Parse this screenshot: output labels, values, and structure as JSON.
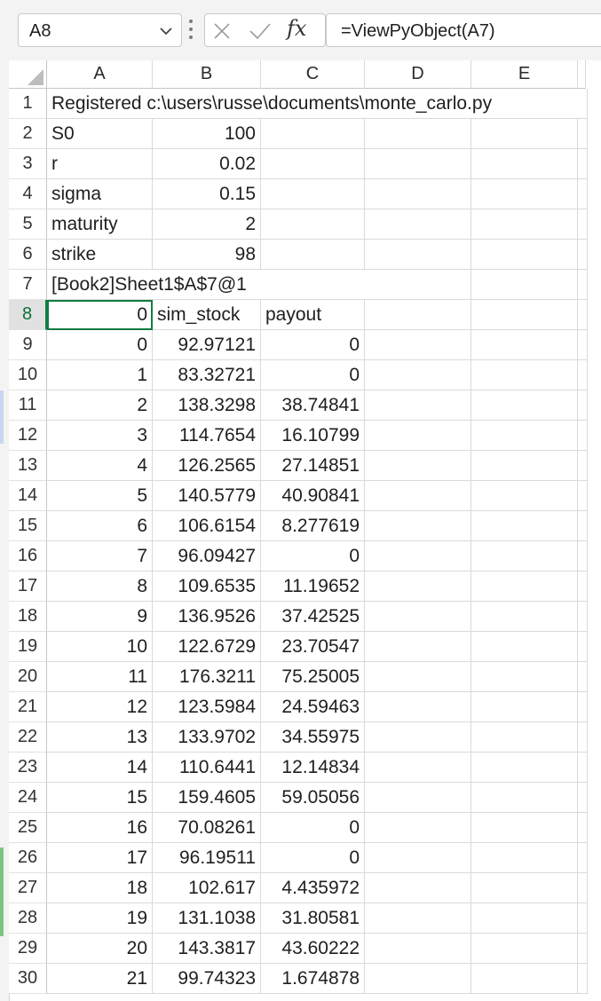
{
  "formula_bar": {
    "name_box": "A8",
    "fx_label": "fx",
    "formula": "=ViewPyObject(A7)"
  },
  "columns": [
    "A",
    "B",
    "C",
    "D",
    "E"
  ],
  "rows": [
    {
      "n": "1",
      "a": "Registered c:\\users\\russe\\documents\\monte_carlo.py",
      "b": "",
      "c": ""
    },
    {
      "n": "2",
      "a": "S0",
      "b": "100",
      "c": ""
    },
    {
      "n": "3",
      "a": "r",
      "b": "0.02",
      "c": ""
    },
    {
      "n": "4",
      "a": "sigma",
      "b": "0.15",
      "c": ""
    },
    {
      "n": "5",
      "a": "maturity",
      "b": "2",
      "c": ""
    },
    {
      "n": "6",
      "a": "strike",
      "b": "98",
      "c": ""
    },
    {
      "n": "7",
      "a": "[Book2]Sheet1$A$7@1",
      "b": "",
      "c": ""
    },
    {
      "n": "8",
      "a": "0",
      "b": "sim_stock",
      "c": "payout"
    },
    {
      "n": "9",
      "a": "0",
      "b": "92.97121",
      "c": "0"
    },
    {
      "n": "10",
      "a": "1",
      "b": "83.32721",
      "c": "0"
    },
    {
      "n": "11",
      "a": "2",
      "b": "138.3298",
      "c": "38.74841"
    },
    {
      "n": "12",
      "a": "3",
      "b": "114.7654",
      "c": "16.10799"
    },
    {
      "n": "13",
      "a": "4",
      "b": "126.2565",
      "c": "27.14851"
    },
    {
      "n": "14",
      "a": "5",
      "b": "140.5779",
      "c": "40.90841"
    },
    {
      "n": "15",
      "a": "6",
      "b": "106.6154",
      "c": "8.277619"
    },
    {
      "n": "16",
      "a": "7",
      "b": "96.09427",
      "c": "0"
    },
    {
      "n": "17",
      "a": "8",
      "b": "109.6535",
      "c": "11.19652"
    },
    {
      "n": "18",
      "a": "9",
      "b": "136.9526",
      "c": "37.42525"
    },
    {
      "n": "19",
      "a": "10",
      "b": "122.6729",
      "c": "23.70547"
    },
    {
      "n": "20",
      "a": "11",
      "b": "176.3211",
      "c": "75.25005"
    },
    {
      "n": "21",
      "a": "12",
      "b": "123.5984",
      "c": "24.59463"
    },
    {
      "n": "22",
      "a": "13",
      "b": "133.9702",
      "c": "34.55975"
    },
    {
      "n": "23",
      "a": "14",
      "b": "110.6441",
      "c": "12.14834"
    },
    {
      "n": "24",
      "a": "15",
      "b": "159.4605",
      "c": "59.05056"
    },
    {
      "n": "25",
      "a": "16",
      "b": "70.08261",
      "c": "0"
    },
    {
      "n": "26",
      "a": "17",
      "b": "96.19511",
      "c": "0"
    },
    {
      "n": "27",
      "a": "18",
      "b": "102.617",
      "c": "4.435972"
    },
    {
      "n": "28",
      "a": "19",
      "b": "131.1038",
      "c": "31.80581"
    },
    {
      "n": "29",
      "a": "20",
      "b": "143.3817",
      "c": "43.60222"
    },
    {
      "n": "30",
      "a": "21",
      "b": "99.74323",
      "c": "1.674878"
    }
  ],
  "colors": {
    "selection": "#107c41",
    "gridline": "#dadada"
  }
}
